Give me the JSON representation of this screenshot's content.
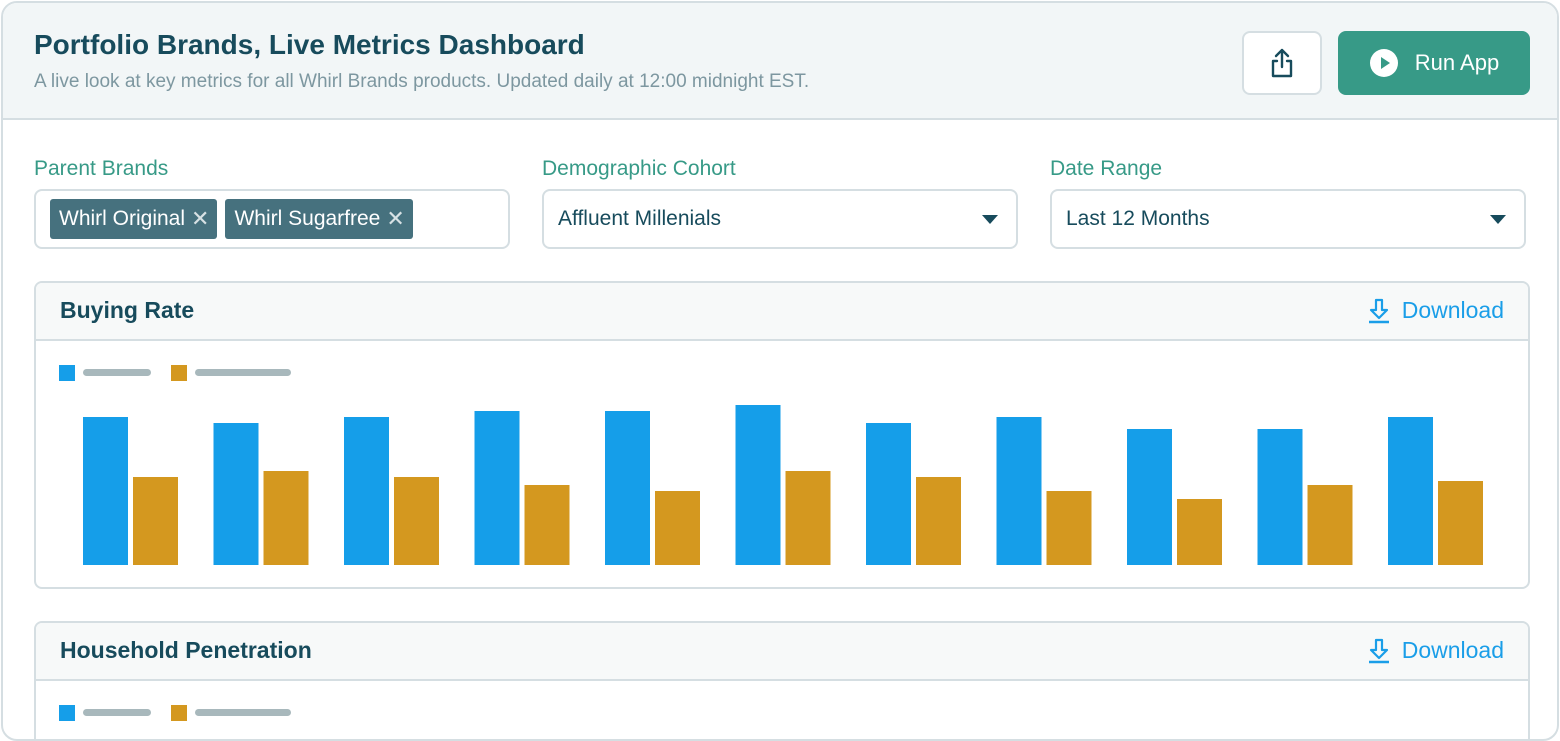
{
  "header": {
    "title": "Portfolio Brands, Live Metrics Dashboard",
    "subtitle": "A live look at key metrics for all Whirl Brands products. Updated daily at 12:00 midnight EST.",
    "share_icon": "share-icon",
    "run_label": "Run App",
    "run_icon": "play-circle-icon"
  },
  "filters": {
    "parent_brands": {
      "label": "Parent Brands",
      "chips": [
        "Whirl Original",
        "Whirl Sugarfree"
      ],
      "remove_glyph": "✕"
    },
    "cohort": {
      "label": "Demographic Cohort",
      "value": "Affluent Millenials"
    },
    "date_range": {
      "label": "Date Range",
      "value": "Last 12 Months"
    }
  },
  "panels": [
    {
      "title": "Buying Rate",
      "download_label": "Download"
    },
    {
      "title": "Household Penetration",
      "download_label": "Download"
    }
  ],
  "colors": {
    "series1": "#159ee9",
    "series2": "#d4981f",
    "accent": "#379a87",
    "legend_placeholder": "#a8b8bc"
  },
  "chart_data": {
    "type": "bar",
    "title": "Buying Rate",
    "categories": [
      "",
      "",
      "",
      "",
      "",
      "",
      "",
      "",
      "",
      "",
      ""
    ],
    "series": [
      {
        "values": [
          148,
          142,
          148,
          154,
          154,
          160,
          142,
          148,
          136,
          136,
          148
        ]
      },
      {
        "values": [
          88,
          94,
          88,
          80,
          74,
          94,
          88,
          74,
          66,
          80,
          84
        ]
      }
    ],
    "ylim": [
      0,
      170
    ],
    "axes_visible": false,
    "grid": false,
    "legend": "top-left"
  }
}
